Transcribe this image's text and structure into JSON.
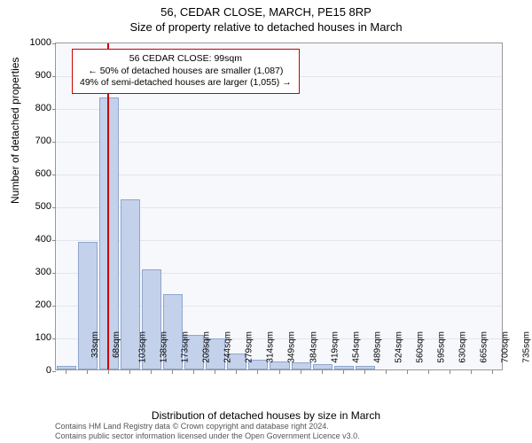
{
  "title_main": "56, CEDAR CLOSE, MARCH, PE15 8RP",
  "title_sub": "Size of property relative to detached houses in March",
  "y_label": "Number of detached properties",
  "x_label": "Distribution of detached houses by size in March",
  "chart": {
    "type": "bar",
    "background_color": "#f6f8fc",
    "bar_fill": "#c4d1ea",
    "bar_stroke": "#8fa5cf",
    "grid_color": "#e3e6ec",
    "marker_color": "#cc0000",
    "ylim": [
      0,
      1000
    ],
    "ytick_step": 100,
    "x_labels": [
      "33sqm",
      "68sqm",
      "103sqm",
      "138sqm",
      "173sqm",
      "209sqm",
      "244sqm",
      "279sqm",
      "314sqm",
      "349sqm",
      "384sqm",
      "419sqm",
      "454sqm",
      "489sqm",
      "524sqm",
      "560sqm",
      "595sqm",
      "630sqm",
      "665sqm",
      "700sqm",
      "735sqm"
    ],
    "values": [
      10,
      390,
      830,
      520,
      305,
      230,
      105,
      95,
      50,
      30,
      25,
      22,
      15,
      12,
      10,
      0,
      0,
      0,
      0,
      0,
      0
    ],
    "marker_bin_index": 1.9,
    "annotation": {
      "line1": "56 CEDAR CLOSE: 99sqm",
      "line2": "← 50% of detached houses are smaller (1,087)",
      "line3": "49% of semi-detached houses are larger (1,055) →"
    }
  },
  "footer_line1": "Contains HM Land Registry data © Crown copyright and database right 2024.",
  "footer_line2": "Contains public sector information licensed under the Open Government Licence v3.0."
}
